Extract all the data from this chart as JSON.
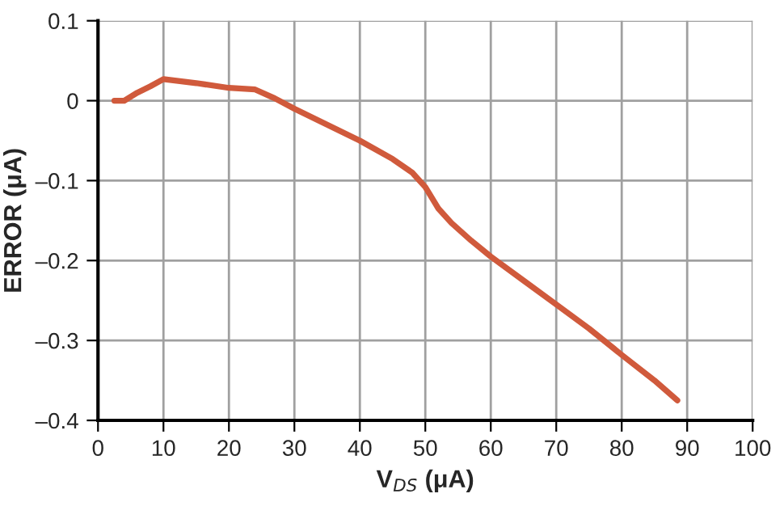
{
  "chart_data": {
    "type": "line",
    "xlabel": "V$_{DS}$ (μA)",
    "ylabel": "ERROR (μA)",
    "x": [
      2.5,
      4,
      6,
      8,
      10,
      15,
      20,
      24,
      27,
      30,
      35,
      40,
      45,
      48,
      50,
      52,
      54,
      57,
      60,
      65,
      70,
      75,
      80,
      85,
      88.5
    ],
    "series": [
      {
        "color": "#d05a3c",
        "values": [
          0,
          0,
          0.01,
          0.018,
          0.027,
          0.022,
          0.016,
          0.014,
          0.003,
          -0.01,
          -0.03,
          -0.05,
          -0.073,
          -0.09,
          -0.108,
          -0.135,
          -0.153,
          -0.175,
          -0.195,
          -0.225,
          -0.255,
          -0.285,
          -0.318,
          -0.35,
          -0.375
        ]
      }
    ],
    "xlim": [
      0,
      100
    ],
    "xticks": [
      0,
      10,
      20,
      30,
      40,
      50,
      60,
      70,
      80,
      90,
      100
    ],
    "ylim": [
      -0.4,
      0.1
    ],
    "yticks": [
      {
        "value": -0.4,
        "label": "–0.4"
      },
      {
        "value": -0.3,
        "label": "–0.3"
      },
      {
        "value": -0.2,
        "label": "–0.2"
      },
      {
        "value": -0.1,
        "label": "–0.1"
      },
      0,
      0.1
    ],
    "grid": true,
    "marker": "none",
    "line_style": "solid"
  }
}
